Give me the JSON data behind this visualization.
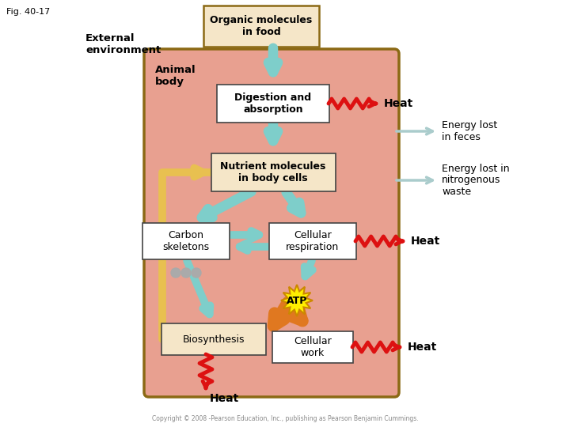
{
  "fig_label": "Fig. 40-17",
  "bg_color": "#ffffff",
  "animal_body_bg": "#e8a090",
  "animal_body_border": "#8B6914",
  "box_bg": "#ffffff",
  "organic_box_bg": "#f5e6c8",
  "organic_box_border": "#8B6914",
  "nutrient_box_bg": "#f5e6c8",
  "bio_box_bg": "#f5e6c8",
  "teal_arrow": "#7ececa",
  "orange_arrow": "#e07820",
  "yellow_atp": "#ffee00",
  "red_zigzag": "#dd1111",
  "gray_arrow": "#aacccc",
  "yellow_curve": "#e8c050",
  "labels": {
    "fig": "Fig. 40-17",
    "external": "External\nenvironment",
    "animal_body": "Animal\nbody",
    "organic": "Organic molecules\nin food",
    "digestion": "Digestion and\nabsorption",
    "nutrient": "Nutrient molecules\nin body cells",
    "carbon": "Carbon\nskeletons",
    "cellular_resp": "Cellular\nrespiration",
    "atp": "ATP",
    "biosynthesis": "Biosynthesis",
    "cellular_work": "Cellular\nwork",
    "heat1": "Heat",
    "heat2": "Heat",
    "heat3": "Heat",
    "heat4": "Heat",
    "energy_feces": "Energy lost\nin feces",
    "energy_nitro": "Energy lost in\nnitrogenous\nwaste",
    "copyright": "Copyright © 2008 -Pearson Education, Inc., publishing as Pearson Benjamin Cummings."
  }
}
